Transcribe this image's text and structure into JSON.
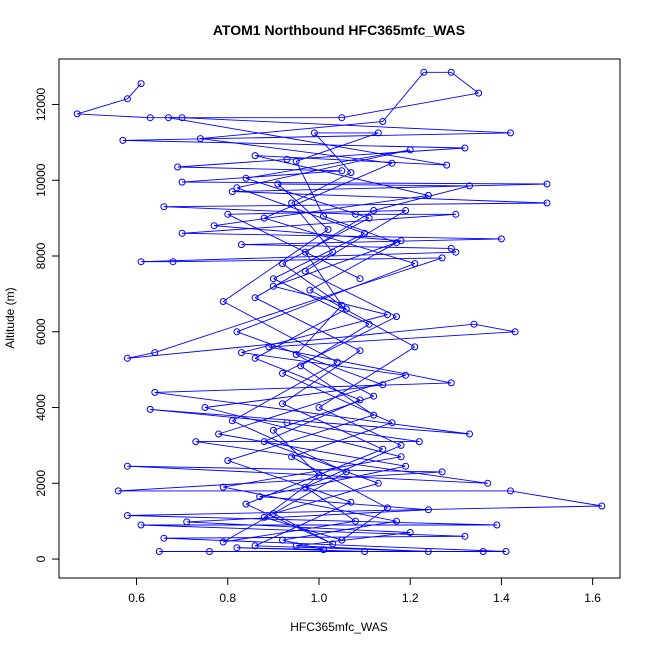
{
  "chart_data": {
    "type": "line",
    "title": "ATOM1 Northbound HFC365mfc_WAS",
    "xlabel": "HFC365mfc_WAS",
    "ylabel": "Altitude (m)",
    "xlim": [
      0.43,
      1.66
    ],
    "ylim": [
      -500,
      13200
    ],
    "xticks": [
      0.6,
      0.8,
      1.0,
      1.2,
      1.4,
      1.6
    ],
    "xtick_labels": [
      "0.6",
      "0.8",
      "1.0",
      "1.2",
      "1.4",
      "1.6"
    ],
    "yticks": [
      0,
      2000,
      4000,
      6000,
      8000,
      10000,
      12000
    ],
    "ytick_labels": [
      "0",
      "2000",
      "4000",
      "6000",
      "8000",
      "10000",
      "12000"
    ],
    "grid": false,
    "series": [
      {
        "color": "#0000ff",
        "marker": "open-circle",
        "points": [
          [
            0.61,
            12550
          ],
          [
            0.58,
            12150
          ],
          [
            0.47,
            11750
          ],
          [
            0.63,
            11650
          ],
          [
            0.7,
            11650
          ],
          [
            1.42,
            11250
          ],
          [
            0.57,
            11050
          ],
          [
            1.32,
            10850
          ],
          [
            0.93,
            10550
          ],
          [
            0.69,
            10350
          ],
          [
            1.05,
            10250
          ],
          [
            0.7,
            9950
          ],
          [
            1.5,
            9900
          ],
          [
            0.81,
            9700
          ],
          [
            1.5,
            9400
          ],
          [
            0.66,
            9300
          ],
          [
            1.08,
            9100
          ],
          [
            1.3,
            9100
          ],
          [
            0.7,
            8600
          ],
          [
            1.4,
            8450
          ],
          [
            0.83,
            8300
          ],
          [
            1.29,
            8200
          ],
          [
            1.3,
            8100
          ],
          [
            0.61,
            7850
          ],
          [
            0.68,
            7850
          ],
          [
            1.27,
            7950
          ],
          [
            0.64,
            5450
          ],
          [
            0.58,
            5300
          ],
          [
            1.34,
            6200
          ],
          [
            1.43,
            6000
          ],
          [
            0.89,
            5600
          ],
          [
            1.29,
            4650
          ],
          [
            0.64,
            4400
          ],
          [
            1.33,
            3300
          ],
          [
            0.63,
            3950
          ],
          [
            0.93,
            3600
          ],
          [
            1.22,
            3100
          ],
          [
            0.73,
            3100
          ],
          [
            1.37,
            2000
          ],
          [
            0.58,
            2450
          ],
          [
            1.27,
            2300
          ],
          [
            0.56,
            1800
          ],
          [
            1.42,
            1800
          ],
          [
            1.62,
            1400
          ],
          [
            0.58,
            1150
          ],
          [
            1.39,
            900
          ],
          [
            0.61,
            900
          ],
          [
            1.32,
            600
          ],
          [
            0.66,
            550
          ],
          [
            1.41,
            200
          ],
          [
            0.65,
            200
          ],
          [
            1.36,
            200
          ],
          [
            0.76,
            200
          ],
          [
            1.1,
            200
          ],
          [
            0.82,
            300
          ],
          [
            1.01,
            250
          ],
          [
            0.92,
            500
          ],
          [
            1.17,
            1000
          ],
          [
            0.79,
            1900
          ],
          [
            1.18,
            2700
          ],
          [
            0.75,
            4000
          ],
          [
            1.14,
            4600
          ],
          [
            0.82,
            6000
          ],
          [
            1.21,
            7800
          ],
          [
            0.88,
            9000
          ],
          [
            1.16,
            10450
          ],
          [
            0.74,
            11100
          ],
          [
            1.14,
            11550
          ],
          [
            1.23,
            12850
          ],
          [
            1.29,
            12850
          ],
          [
            1.35,
            12300
          ],
          [
            1.05,
            11650
          ],
          [
            0.67,
            11650
          ],
          [
            1.28,
            10400
          ],
          [
            0.86,
            10650
          ],
          [
            1.24,
            9600
          ],
          [
            0.77,
            8800
          ],
          [
            1.18,
            8400
          ],
          [
            0.9,
            7200
          ],
          [
            1.15,
            6450
          ],
          [
            0.83,
            5450
          ],
          [
            1.19,
            4850
          ],
          [
            0.78,
            3300
          ],
          [
            1.19,
            2450
          ],
          [
            0.87,
            1650
          ],
          [
            1.24,
            1300
          ],
          [
            0.71,
            980
          ],
          [
            1.2,
            700
          ],
          [
            0.95,
            350
          ],
          [
            1.24,
            200
          ],
          [
            0.86,
            350
          ],
          [
            1.07,
            1500
          ],
          [
            0.8,
            2600
          ],
          [
            1.12,
            3800
          ],
          [
            0.96,
            5100
          ],
          [
            1.11,
            6200
          ],
          [
            0.9,
            7400
          ],
          [
            1.1,
            8600
          ],
          [
            0.82,
            9800
          ],
          [
            1.2,
            10800
          ],
          [
            0.84,
            10050
          ],
          [
            1.11,
            9000
          ],
          [
            0.92,
            7800
          ],
          [
            1.06,
            6600
          ],
          [
            0.86,
            5300
          ],
          [
            1.09,
            4200
          ],
          [
            0.88,
            3100
          ],
          [
            1.13,
            2000
          ],
          [
            0.9,
            1200
          ],
          [
            1.03,
            400
          ],
          [
            0.84,
            1450
          ],
          [
            1.14,
            2900
          ],
          [
            0.92,
            4100
          ],
          [
            1.09,
            5500
          ],
          [
            0.86,
            6900
          ],
          [
            1.03,
            8100
          ],
          [
            0.94,
            9400
          ],
          [
            1.07,
            10200
          ],
          [
            0.99,
            11250
          ],
          [
            1.13,
            11250
          ],
          [
            0.95,
            10500
          ],
          [
            1.01,
            9050
          ],
          [
            1.17,
            8350
          ],
          [
            0.98,
            7100
          ],
          [
            1.21,
            5600
          ],
          [
            1.0,
            4000
          ],
          [
            1.18,
            3000
          ],
          [
            0.97,
            1900
          ],
          [
            1.08,
            1000
          ],
          [
            0.79,
            450
          ],
          [
            1.06,
            2300
          ],
          [
            0.81,
            3650
          ],
          [
            1.04,
            5200
          ],
          [
            0.79,
            6800
          ],
          [
            1.02,
            8700
          ],
          [
            0.91,
            9900
          ],
          [
            1.33,
            9850
          ],
          [
            1.12,
            9200
          ],
          [
            0.97,
            8100
          ],
          [
            1.05,
            6700
          ],
          [
            0.95,
            5400
          ],
          [
            1.12,
            4300
          ],
          [
            0.9,
            3400
          ],
          [
            1.0,
            2200
          ],
          [
            0.88,
            1100
          ],
          [
            1.05,
            500
          ],
          [
            1.15,
            1350
          ],
          [
            0.94,
            2700
          ],
          [
            1.16,
            3600
          ],
          [
            0.92,
            4900
          ],
          [
            1.17,
            6400
          ],
          [
            0.97,
            7600
          ],
          [
            1.19,
            9200
          ],
          [
            0.8,
            9100
          ],
          [
            1.09,
            7400
          ]
        ]
      }
    ]
  }
}
